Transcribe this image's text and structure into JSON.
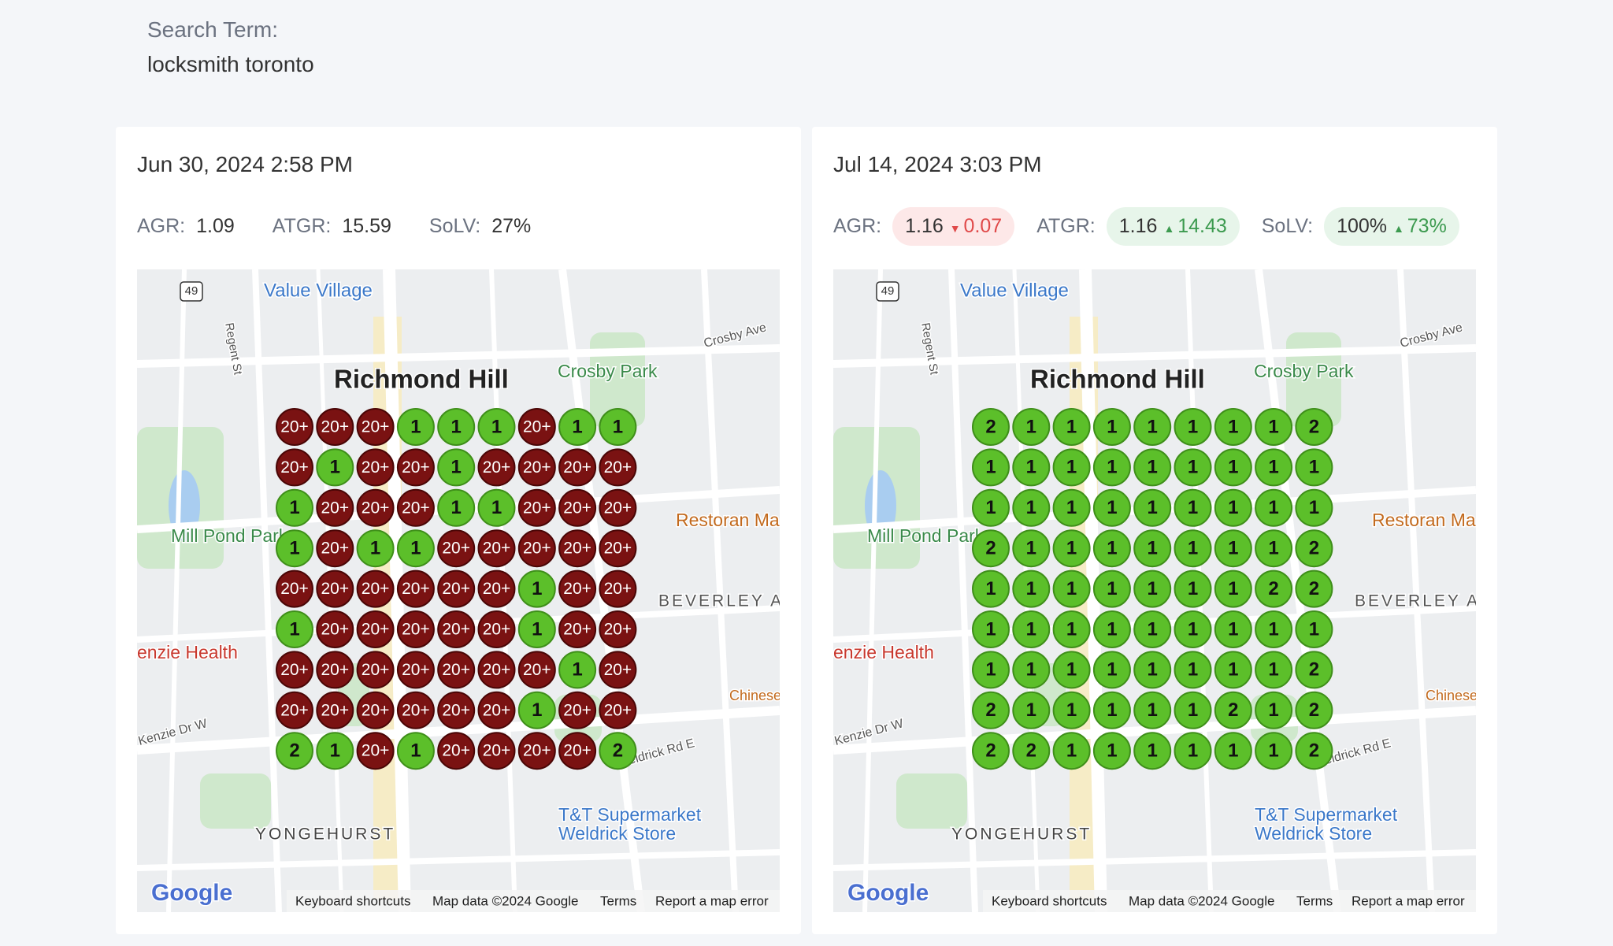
{
  "search": {
    "label": "Search Term:",
    "term": "locksmith toronto"
  },
  "panels": [
    {
      "date": "Jun 30, 2024 2:58 PM",
      "metrics": [
        {
          "label": "AGR:",
          "value": "1.09"
        },
        {
          "label": "ATGR:",
          "value": "15.59"
        },
        {
          "label": "SoLV:",
          "value": "27%"
        }
      ],
      "grid": [
        [
          "20+",
          "20+",
          "20+",
          "1",
          "1",
          "1",
          "20+",
          "1",
          "1"
        ],
        [
          "20+",
          "1",
          "20+",
          "20+",
          "1",
          "20+",
          "20+",
          "20+",
          "20+"
        ],
        [
          "1",
          "20+",
          "20+",
          "20+",
          "1",
          "1",
          "20+",
          "20+",
          "20+"
        ],
        [
          "1",
          "20+",
          "1",
          "1",
          "20+",
          "20+",
          "20+",
          "20+",
          "20+"
        ],
        [
          "20+",
          "20+",
          "20+",
          "20+",
          "20+",
          "20+",
          "1",
          "20+",
          "20+"
        ],
        [
          "1",
          "20+",
          "20+",
          "20+",
          "20+",
          "20+",
          "1",
          "20+",
          "20+"
        ],
        [
          "20+",
          "20+",
          "20+",
          "20+",
          "20+",
          "20+",
          "20+",
          "1",
          "20+"
        ],
        [
          "20+",
          "20+",
          "20+",
          "20+",
          "20+",
          "20+",
          "1",
          "20+",
          "20+"
        ],
        [
          "2",
          "1",
          "20+",
          "1",
          "20+",
          "20+",
          "20+",
          "20+",
          "2"
        ]
      ]
    },
    {
      "date": "Jul 14, 2024 3:03 PM",
      "metrics": [
        {
          "label": "AGR:",
          "value": "1.16",
          "change": "0.07",
          "direction": "down"
        },
        {
          "label": "ATGR:",
          "value": "1.16",
          "change": "14.43",
          "direction": "up"
        },
        {
          "label": "SoLV:",
          "value": "100%",
          "change": "73%",
          "direction": "up"
        }
      ],
      "grid": [
        [
          "2",
          "1",
          "1",
          "1",
          "1",
          "1",
          "1",
          "1",
          "2"
        ],
        [
          "1",
          "1",
          "1",
          "1",
          "1",
          "1",
          "1",
          "1",
          "1"
        ],
        [
          "1",
          "1",
          "1",
          "1",
          "1",
          "1",
          "1",
          "1",
          "1"
        ],
        [
          "2",
          "1",
          "1",
          "1",
          "1",
          "1",
          "1",
          "1",
          "2"
        ],
        [
          "1",
          "1",
          "1",
          "1",
          "1",
          "1",
          "1",
          "2",
          "2"
        ],
        [
          "1",
          "1",
          "1",
          "1",
          "1",
          "1",
          "1",
          "1",
          "1"
        ],
        [
          "1",
          "1",
          "1",
          "1",
          "1",
          "1",
          "1",
          "1",
          "2"
        ],
        [
          "2",
          "1",
          "1",
          "1",
          "1",
          "1",
          "2",
          "1",
          "2"
        ],
        [
          "2",
          "2",
          "1",
          "1",
          "1",
          "1",
          "1",
          "1",
          "2"
        ]
      ]
    }
  ],
  "map_labels": [
    "49",
    "Value Village",
    "Regent St",
    "Richmond Hill",
    "Crosby Park",
    "Crosby Ave",
    "Mill Pond Park",
    "Restoran Ma",
    "BEVERLEY A",
    "enzie Health",
    "Chinese",
    "Kenzie Dr W",
    "Weldrick Rd E",
    "YONGEHURST",
    "T&T Supermarket",
    "Weldrick Store",
    "Google"
  ],
  "map_footer": [
    "Keyboard shortcuts",
    "Map data ©2024 Google",
    "Terms",
    "Report a map error"
  ]
}
